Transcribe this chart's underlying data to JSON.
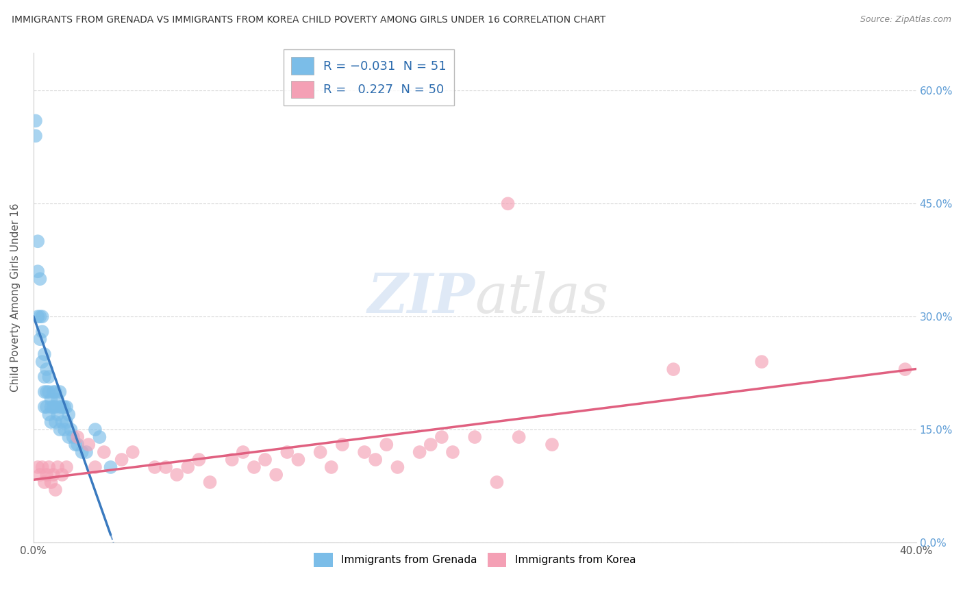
{
  "title": "IMMIGRANTS FROM GRENADA VS IMMIGRANTS FROM KOREA CHILD POVERTY AMONG GIRLS UNDER 16 CORRELATION CHART",
  "source": "Source: ZipAtlas.com",
  "ylabel": "Child Poverty Among Girls Under 16",
  "xlim": [
    0.0,
    0.4
  ],
  "ylim": [
    0.0,
    0.65
  ],
  "y_ticks": [
    0.0,
    0.15,
    0.3,
    0.45,
    0.6
  ],
  "y_tick_labels_right": [
    "0.0%",
    "15.0%",
    "30.0%",
    "45.0%",
    "60.0%"
  ],
  "grenada_color": "#7bbde8",
  "korea_color": "#f4a0b5",
  "grenada_line_color": "#3a7abf",
  "korea_line_color": "#e06080",
  "grenada_R": -0.031,
  "grenada_N": 51,
  "korea_R": 0.227,
  "korea_N": 50,
  "watermark_zip": "ZIP",
  "watermark_atlas": "atlas",
  "background_color": "#ffffff",
  "grenada_x": [
    0.001,
    0.001,
    0.002,
    0.002,
    0.002,
    0.003,
    0.003,
    0.003,
    0.004,
    0.004,
    0.004,
    0.005,
    0.005,
    0.005,
    0.005,
    0.006,
    0.006,
    0.006,
    0.007,
    0.007,
    0.007,
    0.008,
    0.008,
    0.008,
    0.009,
    0.009,
    0.01,
    0.01,
    0.01,
    0.011,
    0.011,
    0.012,
    0.012,
    0.012,
    0.013,
    0.013,
    0.014,
    0.014,
    0.015,
    0.015,
    0.016,
    0.016,
    0.017,
    0.018,
    0.019,
    0.02,
    0.022,
    0.024,
    0.028,
    0.03,
    0.035
  ],
  "grenada_y": [
    0.56,
    0.54,
    0.4,
    0.36,
    0.3,
    0.35,
    0.3,
    0.27,
    0.3,
    0.28,
    0.24,
    0.25,
    0.22,
    0.2,
    0.18,
    0.23,
    0.2,
    0.18,
    0.22,
    0.2,
    0.17,
    0.19,
    0.18,
    0.16,
    0.2,
    0.18,
    0.2,
    0.18,
    0.16,
    0.19,
    0.17,
    0.2,
    0.18,
    0.15,
    0.18,
    0.16,
    0.18,
    0.15,
    0.18,
    0.16,
    0.17,
    0.14,
    0.15,
    0.14,
    0.13,
    0.13,
    0.12,
    0.12,
    0.15,
    0.14,
    0.1
  ],
  "korea_x": [
    0.002,
    0.003,
    0.004,
    0.005,
    0.006,
    0.007,
    0.008,
    0.009,
    0.01,
    0.011,
    0.013,
    0.015,
    0.02,
    0.025,
    0.028,
    0.032,
    0.04,
    0.045,
    0.055,
    0.06,
    0.065,
    0.07,
    0.075,
    0.08,
    0.09,
    0.095,
    0.1,
    0.105,
    0.11,
    0.115,
    0.12,
    0.13,
    0.135,
    0.14,
    0.15,
    0.155,
    0.16,
    0.165,
    0.175,
    0.18,
    0.185,
    0.19,
    0.2,
    0.21,
    0.215,
    0.22,
    0.235,
    0.29,
    0.33,
    0.395
  ],
  "korea_y": [
    0.1,
    0.09,
    0.1,
    0.08,
    0.09,
    0.1,
    0.08,
    0.09,
    0.07,
    0.1,
    0.09,
    0.1,
    0.14,
    0.13,
    0.1,
    0.12,
    0.11,
    0.12,
    0.1,
    0.1,
    0.09,
    0.1,
    0.11,
    0.08,
    0.11,
    0.12,
    0.1,
    0.11,
    0.09,
    0.12,
    0.11,
    0.12,
    0.1,
    0.13,
    0.12,
    0.11,
    0.13,
    0.1,
    0.12,
    0.13,
    0.14,
    0.12,
    0.14,
    0.08,
    0.45,
    0.14,
    0.13,
    0.23,
    0.24,
    0.23
  ],
  "legend_R_color": "#2a6aad",
  "legend_N_color": "#2a6aad"
}
